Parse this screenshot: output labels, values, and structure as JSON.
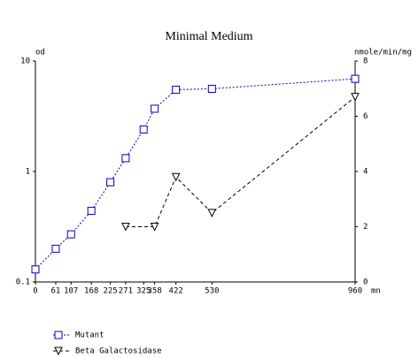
{
  "chart_data": {
    "type": "line",
    "title": "Minimal Medium",
    "ylabel": "od",
    "y2label": "nmole/min/mg",
    "xlabel": "mn",
    "xlim": [
      0,
      960
    ],
    "xticks": [
      0,
      61,
      107,
      168,
      225,
      271,
      325,
      358,
      422,
      530,
      960
    ],
    "ylim": [
      0.1,
      10
    ],
    "yticks": [
      0.1,
      1,
      10
    ],
    "yscale": "log",
    "y2lim": [
      0,
      8
    ],
    "y2ticks": [
      0,
      2,
      4,
      6,
      8
    ],
    "legend": "bottom",
    "series": [
      {
        "name": "Mutant",
        "color": "#0000cc",
        "marker": "square",
        "linestyle": "dotted",
        "x": [
          0,
          61,
          107,
          168,
          225,
          271,
          325,
          358,
          422,
          530,
          960
        ],
        "values": [
          0.13,
          0.2,
          0.27,
          0.44,
          0.8,
          1.32,
          2.4,
          3.7,
          5.5,
          5.6,
          6.9
        ]
      },
      {
        "name": "Beta Galactosidase",
        "color": "#000000",
        "marker": "triangle-down",
        "linestyle": "dashed",
        "axis": "y2",
        "x": [
          271,
          358,
          422,
          530,
          960
        ],
        "values": [
          2.0,
          2.0,
          3.8,
          2.5,
          6.7
        ]
      }
    ]
  }
}
